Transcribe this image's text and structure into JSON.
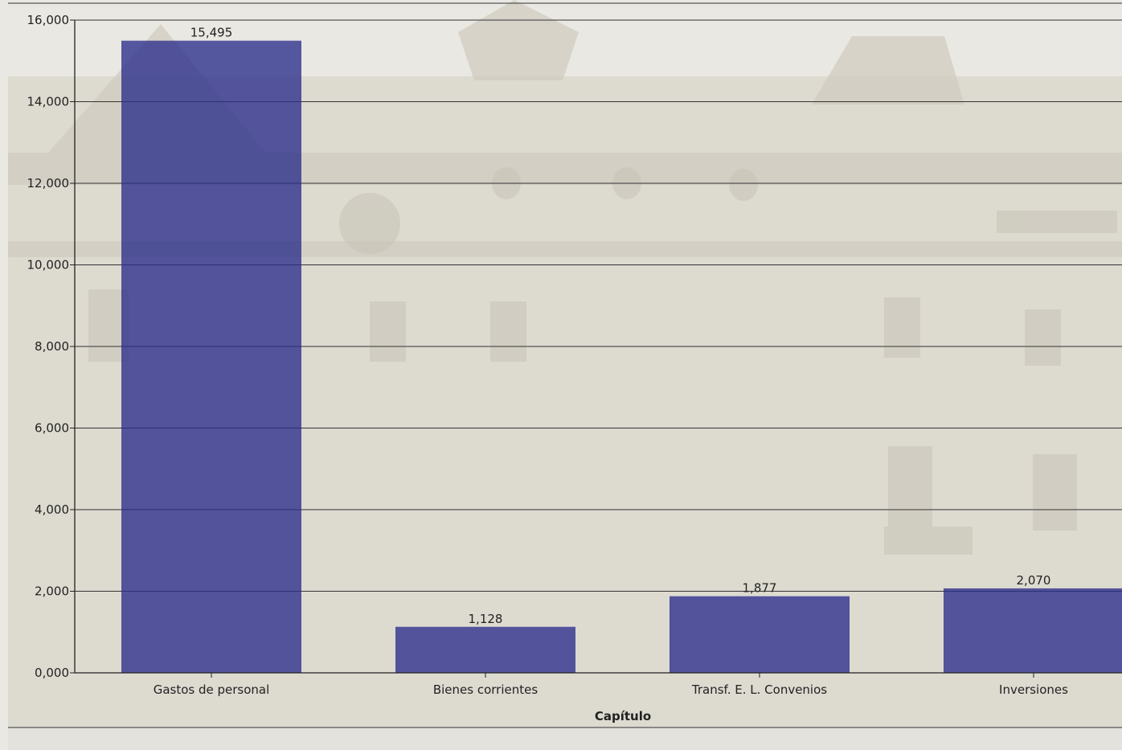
{
  "chart_data": {
    "type": "bar",
    "categories": [
      "Gastos de personal",
      "Bienes corrientes",
      "Transf. E. L. Convenios",
      "Inversiones"
    ],
    "values": [
      15495,
      1128,
      1877,
      2070
    ],
    "data_labels": [
      "15,495",
      "1,128",
      "1,877",
      "2,070"
    ],
    "xlabel": "Capítulo",
    "ylabel": "",
    "ylim": [
      0,
      16000
    ],
    "yticks": [
      {
        "value": 0,
        "label": "0,000"
      },
      {
        "value": 2000,
        "label": "2,000"
      },
      {
        "value": 4000,
        "label": "4,000"
      },
      {
        "value": 6000,
        "label": "6,000"
      },
      {
        "value": 8000,
        "label": "8,000"
      },
      {
        "value": 10000,
        "label": "10,000"
      },
      {
        "value": 12000,
        "label": "12,000"
      },
      {
        "value": 14000,
        "label": "14,000"
      },
      {
        "value": 16000,
        "label": "16,000"
      }
    ],
    "grid": true,
    "bar_color": "#2a2d8a",
    "background_color": "#ecebe6"
  }
}
